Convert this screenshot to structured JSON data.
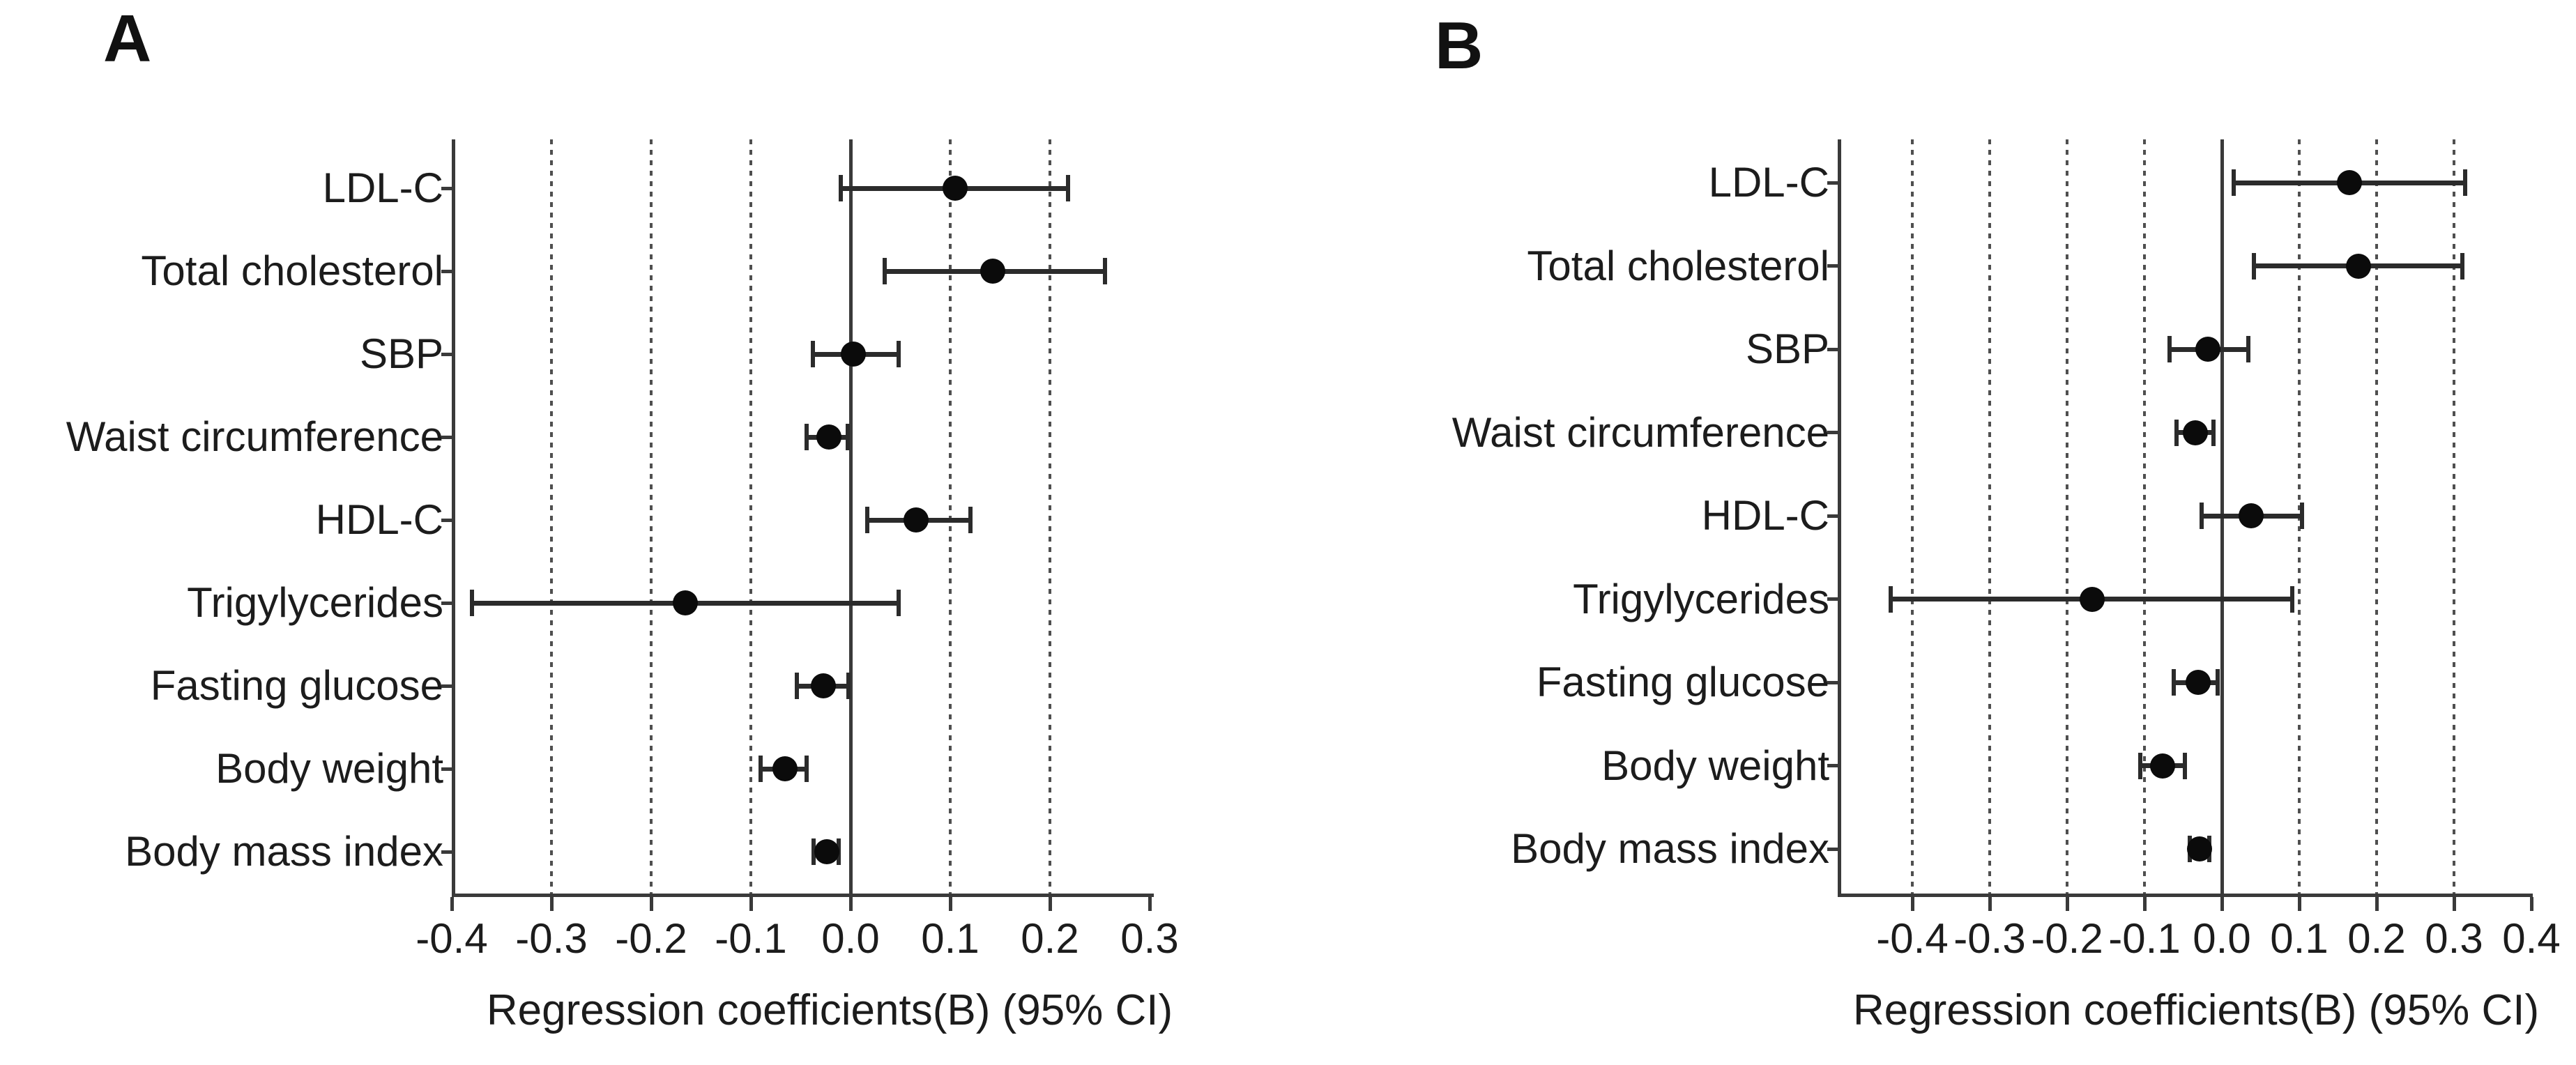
{
  "figure_title": "",
  "colors": {
    "background": "#ffffff",
    "marker": "#0b0b0b",
    "error_bar": "#2b2b2b",
    "axis_line": "#3a3a3a",
    "text": "#1c1c1c"
  },
  "chart_data": [
    {
      "type": "scatter",
      "panel_label": "A",
      "title": "",
      "xlabel": "Regression coefficients(B) (95% CI)",
      "ylabel": "",
      "categories": [
        "LDL-C",
        "Total cholesterol",
        "SBP",
        "Waist circumference",
        "HDL-C",
        "Trigylycerides",
        "Fasting glucose",
        "Body weight",
        "Body mass index"
      ],
      "series": [
        {
          "name": "Regression coefficient (95% CI)",
          "values": [
            {
              "b": 0.105,
              "lo": -0.01,
              "hi": 0.218
            },
            {
              "b": 0.143,
              "lo": 0.034,
              "hi": 0.255
            },
            {
              "b": 0.003,
              "lo": -0.038,
              "hi": 0.048
            },
            {
              "b": -0.022,
              "lo": -0.044,
              "hi": -0.003
            },
            {
              "b": 0.066,
              "lo": 0.017,
              "hi": 0.12
            },
            {
              "b": -0.166,
              "lo": -0.38,
              "hi": 0.048
            },
            {
              "b": -0.027,
              "lo": -0.054,
              "hi": -0.002
            },
            {
              "b": -0.066,
              "lo": -0.09,
              "hi": -0.044
            },
            {
              "b": -0.024,
              "lo": -0.037,
              "hi": -0.012
            }
          ]
        }
      ],
      "xlim": [
        -0.4,
        0.3
      ],
      "xticks": [
        "-0.4",
        "-0.3",
        "-0.2",
        "-0.1",
        "0.0",
        "0.1",
        "0.2",
        "0.3"
      ],
      "xtick_values": [
        -0.4,
        -0.3,
        -0.2,
        -0.1,
        0.0,
        0.1,
        0.2,
        0.3
      ],
      "dotted_gridlines": [
        -0.3,
        -0.2,
        -0.1,
        0.1,
        0.2
      ],
      "zero_line": 0.0,
      "grid": "vertical-dotted",
      "legend": "none"
    },
    {
      "type": "scatter",
      "panel_label": "B",
      "title": "",
      "xlabel": "Regression coefficients(B) (95% CI)",
      "ylabel": "",
      "categories": [
        "LDL-C",
        "Total cholesterol",
        "SBP",
        "Waist circumference",
        "HDL-C",
        "Trigylycerides",
        "Fasting glucose",
        "Body weight",
        "Body mass index"
      ],
      "series": [
        {
          "name": "Regression coefficient (95% CI)",
          "values": [
            {
              "b": 0.165,
              "lo": 0.015,
              "hi": 0.314
            },
            {
              "b": 0.177,
              "lo": 0.041,
              "hi": 0.311
            },
            {
              "b": -0.018,
              "lo": -0.068,
              "hi": 0.034
            },
            {
              "b": -0.034,
              "lo": -0.059,
              "hi": -0.011
            },
            {
              "b": 0.038,
              "lo": -0.026,
              "hi": 0.104
            },
            {
              "b": -0.168,
              "lo": -0.428,
              "hi": 0.091
            },
            {
              "b": -0.031,
              "lo": -0.062,
              "hi": -0.005
            },
            {
              "b": -0.077,
              "lo": -0.105,
              "hi": -0.048
            },
            {
              "b": -0.029,
              "lo": -0.041,
              "hi": -0.016
            }
          ]
        }
      ],
      "xlim": [
        -0.4,
        0.4
      ],
      "xticks": [
        "-0.4",
        "-0.3",
        "-0.2",
        "-0.1",
        "0.0",
        "0.1",
        "0.2",
        "0.3",
        "0.4"
      ],
      "xtick_values": [
        -0.4,
        -0.3,
        -0.2,
        -0.1,
        0.0,
        0.1,
        0.2,
        0.3,
        0.4
      ],
      "dotted_gridlines": [
        -0.4,
        -0.3,
        -0.2,
        -0.1,
        0.1,
        0.2,
        0.3
      ],
      "zero_line": 0.0,
      "grid": "vertical-dotted",
      "legend": "none"
    }
  ]
}
